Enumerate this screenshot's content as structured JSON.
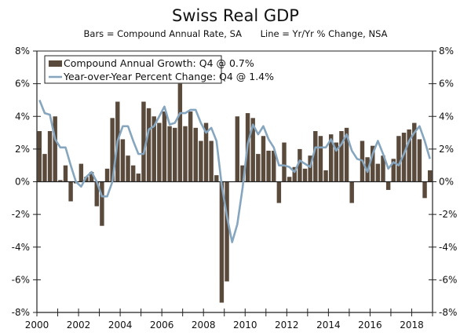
{
  "chart_data": {
    "type": "bar",
    "title": "Swiss Real GDP",
    "subtitle_left": "Bars = Compound Annual Rate, SA",
    "subtitle_right": "Line = Yr/Yr % Change, NSA",
    "xlabel": "",
    "ylabel": "",
    "ylim": [
      -8,
      8
    ],
    "y_ticks": [
      "8%",
      "6%",
      "4%",
      "2%",
      "0%",
      "-2%",
      "-4%",
      "-6%",
      "-8%"
    ],
    "y_tick_values": [
      8,
      6,
      4,
      2,
      0,
      -2,
      -4,
      -6,
      -8
    ],
    "x_tick_labels": [
      "2000",
      "2002",
      "2004",
      "2006",
      "2008",
      "2010",
      "2012",
      "2014",
      "2016",
      "2018"
    ],
    "x_range": [
      "2000Q1",
      "2018Q4"
    ],
    "grid": false,
    "legend_position": "top-left",
    "colors": {
      "bars": "#5a4a3c",
      "line": "#86a6c0",
      "axis": "#222222"
    },
    "series": [
      {
        "name": "Compound Annual Growth: Q4 @ 0.7%",
        "type": "bar",
        "values": [
          3.1,
          1.7,
          3.1,
          4.0,
          0.1,
          1.0,
          -1.2,
          -0.1,
          1.1,
          0.3,
          0.6,
          -1.5,
          -2.7,
          0.8,
          3.9,
          4.9,
          2.6,
          1.6,
          1.0,
          0.5,
          4.9,
          4.5,
          4.0,
          3.6,
          4.3,
          3.4,
          3.3,
          6.0,
          3.4,
          4.3,
          3.3,
          2.5,
          3.6,
          2.5,
          0.4,
          -7.4,
          -6.1,
          0.0,
          4.0,
          1.0,
          4.2,
          3.9,
          1.7,
          2.8,
          1.9,
          1.9,
          -1.3,
          2.4,
          0.3,
          0.9,
          2.0,
          0.8,
          1.6,
          3.1,
          2.8,
          0.7,
          2.9,
          2.4,
          3.1,
          3.3,
          -1.3,
          0.0,
          2.5,
          1.5,
          2.2,
          1.1,
          1.6,
          -0.5,
          1.4,
          2.8,
          3.0,
          3.2,
          3.6,
          2.6,
          -1.0,
          0.7
        ]
      },
      {
        "name": "Year-over-Year Percent Change: Q4 @ 1.4%",
        "type": "line",
        "values": [
          5.0,
          4.2,
          4.1,
          2.6,
          2.1,
          2.1,
          1.0,
          0.0,
          -0.3,
          0.3,
          0.6,
          0.0,
          -0.9,
          -0.9,
          0.0,
          2.5,
          3.4,
          3.4,
          2.5,
          1.7,
          1.7,
          3.2,
          3.4,
          4.0,
          4.6,
          3.5,
          3.6,
          4.2,
          4.2,
          4.4,
          4.4,
          3.6,
          3.0,
          3.3,
          2.5,
          -0.2,
          -2.1,
          -3.7,
          -2.6,
          -0.4,
          2.3,
          3.5,
          2.9,
          3.4,
          2.6,
          2.1,
          1.0,
          1.0,
          0.9,
          0.6,
          1.3,
          1.1,
          0.9,
          2.1,
          2.1,
          2.1,
          2.6,
          1.9,
          2.3,
          2.9,
          1.9,
          1.4,
          1.3,
          0.6,
          1.7,
          2.5,
          1.7,
          0.8,
          1.2,
          1.0,
          1.7,
          2.5,
          3.0,
          3.4,
          2.5,
          1.4
        ]
      }
    ]
  }
}
